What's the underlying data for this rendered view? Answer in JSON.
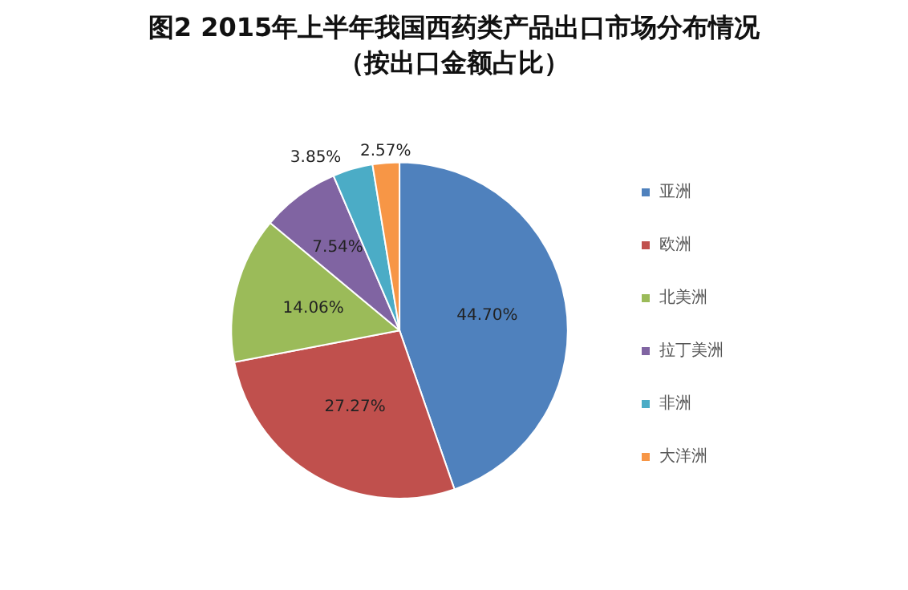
{
  "chart_data": {
    "type": "pie",
    "title": "图2 2015年上半年我国西药类产品出口市场分布情况",
    "subtitle": "（按出口金额占比）",
    "categories": [
      "亚洲",
      "欧洲",
      "北美洲",
      "拉丁美洲",
      "非洲",
      "大洋洲"
    ],
    "values": [
      44.7,
      27.27,
      14.06,
      7.54,
      3.85,
      2.57
    ],
    "colors": [
      "#4f81bd",
      "#c0504d",
      "#9bbb59",
      "#8064a2",
      "#4bacc6",
      "#f79646"
    ],
    "value_labels": [
      "44.70%",
      "27.27%",
      "14.06%",
      "7.54%",
      "3.85%",
      "2.57%"
    ],
    "legend": "right"
  }
}
